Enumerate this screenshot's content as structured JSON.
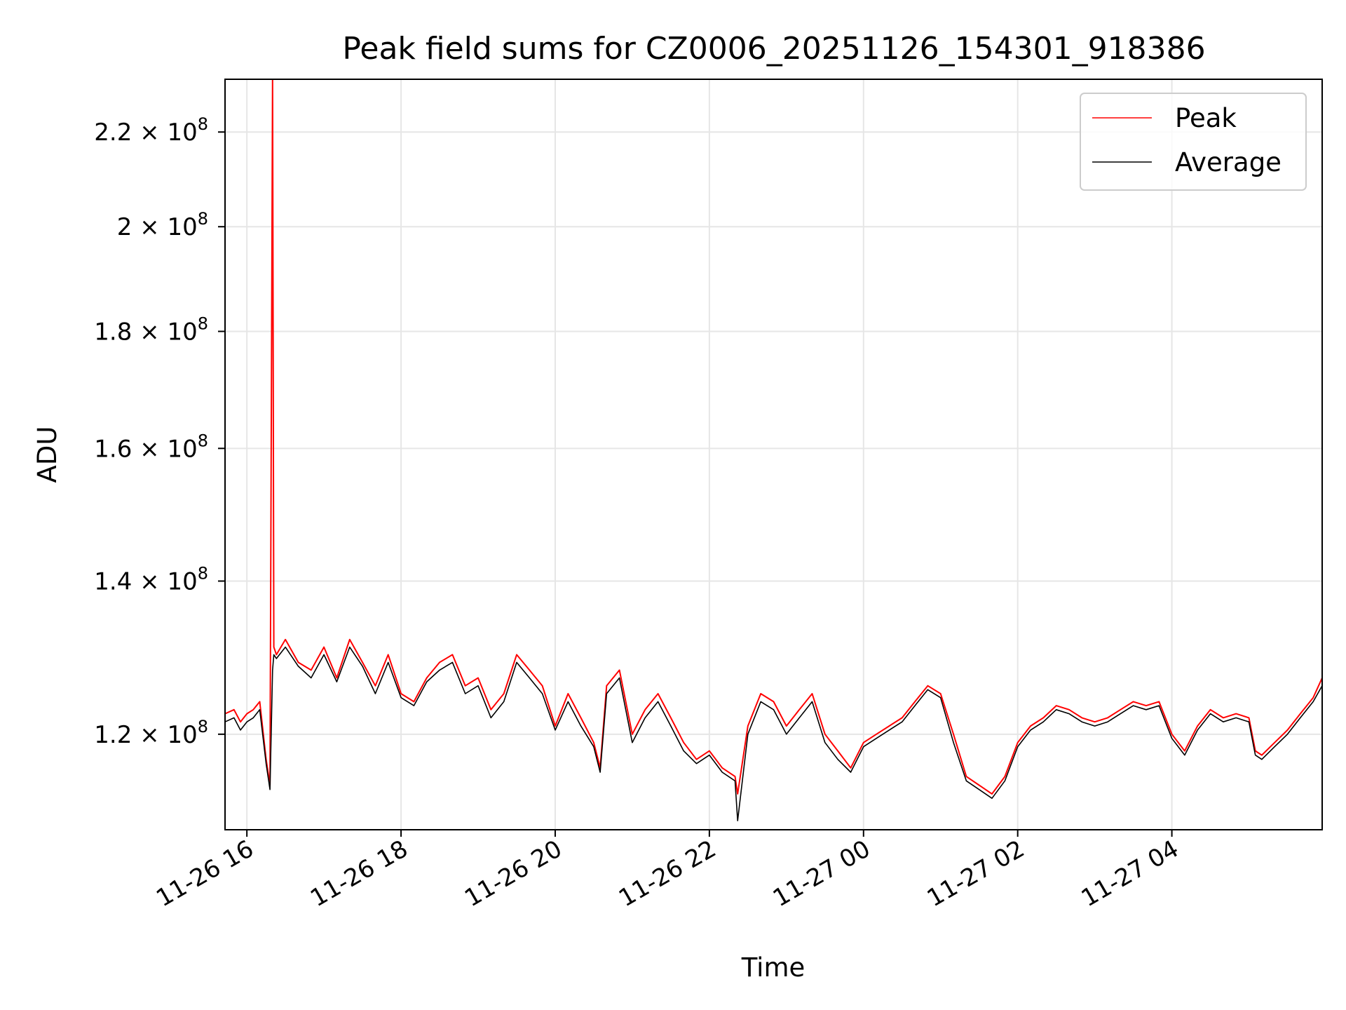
{
  "chart_data": {
    "type": "line",
    "title": "Peak field sums for CZ0006_20251126_154301_918386",
    "xlabel": "Time",
    "ylabel": "ADU",
    "y_scale": "log",
    "grid": true,
    "legend_position": "top-right",
    "xlim": [
      "2025-11-26 15:43",
      "2025-11-27 05:57"
    ],
    "ylim": [
      109000000.0,
      232000000.0
    ],
    "x_ticks": [
      {
        "t": "2025-11-26 16:00",
        "label": "11-26 16"
      },
      {
        "t": "2025-11-26 18:00",
        "label": "11-26 18"
      },
      {
        "t": "2025-11-26 20:00",
        "label": "11-26 20"
      },
      {
        "t": "2025-11-26 22:00",
        "label": "11-26 22"
      },
      {
        "t": "2025-11-27 00:00",
        "label": "11-27 00"
      },
      {
        "t": "2025-11-27 02:00",
        "label": "11-27 02"
      },
      {
        "t": "2025-11-27 04:00",
        "label": "11-27 04"
      }
    ],
    "y_ticks": [
      {
        "value": 120000000.0,
        "mantissa": "1.2",
        "exponent": "8"
      },
      {
        "value": 140000000.0,
        "mantissa": "1.4",
        "exponent": "8"
      },
      {
        "value": 160000000.0,
        "mantissa": "1.6",
        "exponent": "8"
      },
      {
        "value": 180000000.0,
        "mantissa": "1.8",
        "exponent": "8"
      },
      {
        "value": 200000000.0,
        "mantissa": "2",
        "exponent": "8"
      },
      {
        "value": 220000000.0,
        "mantissa": "2.2",
        "exponent": "8"
      }
    ],
    "colors": {
      "peak": "#ff0000",
      "average": "#000000",
      "grid": "#e6e6e6",
      "legend_border": "#cccccc"
    },
    "series": [
      {
        "name": "Peak",
        "color": "#ff0000",
        "x": [
          "2025-11-26 15:43",
          "2025-11-26 15:50",
          "2025-11-26 15:55",
          "2025-11-26 16:00",
          "2025-11-26 16:05",
          "2025-11-26 16:10",
          "2025-11-26 16:15",
          "2025-11-26 16:18",
          "2025-11-26 16:20",
          "2025-11-26 16:21",
          "2025-11-26 16:23",
          "2025-11-26 16:30",
          "2025-11-26 16:40",
          "2025-11-26 16:50",
          "2025-11-26 17:00",
          "2025-11-26 17:10",
          "2025-11-26 17:20",
          "2025-11-26 17:30",
          "2025-11-26 17:40",
          "2025-11-26 17:50",
          "2025-11-26 18:00",
          "2025-11-26 18:10",
          "2025-11-26 18:20",
          "2025-11-26 18:30",
          "2025-11-26 18:40",
          "2025-11-26 18:50",
          "2025-11-26 19:00",
          "2025-11-26 19:10",
          "2025-11-26 19:20",
          "2025-11-26 19:30",
          "2025-11-26 19:40",
          "2025-11-26 19:50",
          "2025-11-26 20:00",
          "2025-11-26 20:10",
          "2025-11-26 20:20",
          "2025-11-26 20:30",
          "2025-11-26 20:35",
          "2025-11-26 20:40",
          "2025-11-26 20:50",
          "2025-11-26 21:00",
          "2025-11-26 21:10",
          "2025-11-26 21:20",
          "2025-11-26 21:30",
          "2025-11-26 21:40",
          "2025-11-26 21:50",
          "2025-11-26 22:00",
          "2025-11-26 22:10",
          "2025-11-26 22:20",
          "2025-11-26 22:22",
          "2025-11-26 22:30",
          "2025-11-26 22:40",
          "2025-11-26 22:50",
          "2025-11-26 23:00",
          "2025-11-26 23:10",
          "2025-11-26 23:20",
          "2025-11-26 23:30",
          "2025-11-26 23:40",
          "2025-11-26 23:50",
          "2025-11-27 00:00",
          "2025-11-27 00:10",
          "2025-11-27 00:20",
          "2025-11-27 00:30",
          "2025-11-27 00:40",
          "2025-11-27 00:50",
          "2025-11-27 01:00",
          "2025-11-27 01:10",
          "2025-11-27 01:20",
          "2025-11-27 01:30",
          "2025-11-27 01:40",
          "2025-11-27 01:50",
          "2025-11-27 02:00",
          "2025-11-27 02:10",
          "2025-11-27 02:20",
          "2025-11-27 02:30",
          "2025-11-27 02:40",
          "2025-11-27 02:50",
          "2025-11-27 03:00",
          "2025-11-27 03:10",
          "2025-11-27 03:20",
          "2025-11-27 03:30",
          "2025-11-27 03:40",
          "2025-11-27 03:50",
          "2025-11-27 04:00",
          "2025-11-27 04:10",
          "2025-11-27 04:20",
          "2025-11-27 04:30",
          "2025-11-27 04:40",
          "2025-11-27 04:50",
          "2025-11-27 05:00",
          "2025-11-27 05:05",
          "2025-11-27 05:10",
          "2025-11-27 05:20",
          "2025-11-27 05:30",
          "2025-11-27 05:40",
          "2025-11-27 05:50",
          "2025-11-27 05:57"
        ],
        "y": [
          122500000.0,
          123000000.0,
          121500000.0,
          122500000.0,
          123000000.0,
          124000000.0,
          117000000.0,
          114000000.0,
          232000000.0,
          131000000.0,
          130000000.0,
          132000000.0,
          129000000.0,
          128000000.0,
          131000000.0,
          127000000.0,
          132000000.0,
          129000000.0,
          126000000.0,
          130000000.0,
          125000000.0,
          124000000.0,
          127000000.0,
          129000000.0,
          130000000.0,
          126000000.0,
          127000000.0,
          123000000.0,
          125000000.0,
          130000000.0,
          128000000.0,
          126000000.0,
          121000000.0,
          125000000.0,
          122000000.0,
          119000000.0,
          116000000.0,
          126000000.0,
          128000000.0,
          120000000.0,
          123000000.0,
          125000000.0,
          122000000.0,
          119000000.0,
          117000000.0,
          118000000.0,
          116000000.0,
          115000000.0,
          113000000.0,
          121000000.0,
          125000000.0,
          124000000.0,
          121000000.0,
          123000000.0,
          125000000.0,
          120000000.0,
          118000000.0,
          116000000.0,
          119000000.0,
          120000000.0,
          121000000.0,
          122000000.0,
          124000000.0,
          126000000.0,
          125000000.0,
          120000000.0,
          115000000.0,
          114000000.0,
          113000000.0,
          115000000.0,
          119000000.0,
          121000000.0,
          122000000.0,
          123500000.0,
          123000000.0,
          122000000.0,
          121500000.0,
          122000000.0,
          123000000.0,
          124000000.0,
          123500000.0,
          124000000.0,
          120000000.0,
          118000000.0,
          121000000.0,
          123000000.0,
          122000000.0,
          122500000.0,
          122000000.0,
          118000000.0,
          117500000.0,
          119000000.0,
          120500000.0,
          122500000.0,
          124500000.0,
          127000000.0
        ]
      },
      {
        "name": "Average",
        "color": "#000000",
        "x": [
          "2025-11-26 15:43",
          "2025-11-26 15:50",
          "2025-11-26 15:55",
          "2025-11-26 16:00",
          "2025-11-26 16:05",
          "2025-11-26 16:10",
          "2025-11-26 16:15",
          "2025-11-26 16:18",
          "2025-11-26 16:20",
          "2025-11-26 16:21",
          "2025-11-26 16:23",
          "2025-11-26 16:30",
          "2025-11-26 16:40",
          "2025-11-26 16:50",
          "2025-11-26 17:00",
          "2025-11-26 17:10",
          "2025-11-26 17:20",
          "2025-11-26 17:30",
          "2025-11-26 17:40",
          "2025-11-26 17:50",
          "2025-11-26 18:00",
          "2025-11-26 18:10",
          "2025-11-26 18:20",
          "2025-11-26 18:30",
          "2025-11-26 18:40",
          "2025-11-26 18:50",
          "2025-11-26 19:00",
          "2025-11-26 19:10",
          "2025-11-26 19:20",
          "2025-11-26 19:30",
          "2025-11-26 19:40",
          "2025-11-26 19:50",
          "2025-11-26 20:00",
          "2025-11-26 20:10",
          "2025-11-26 20:20",
          "2025-11-26 20:30",
          "2025-11-26 20:35",
          "2025-11-26 20:40",
          "2025-11-26 20:50",
          "2025-11-26 21:00",
          "2025-11-26 21:10",
          "2025-11-26 21:20",
          "2025-11-26 21:30",
          "2025-11-26 21:40",
          "2025-11-26 21:50",
          "2025-11-26 22:00",
          "2025-11-26 22:10",
          "2025-11-26 22:20",
          "2025-11-26 22:22",
          "2025-11-26 22:30",
          "2025-11-26 22:40",
          "2025-11-26 22:50",
          "2025-11-26 23:00",
          "2025-11-26 23:10",
          "2025-11-26 23:20",
          "2025-11-26 23:30",
          "2025-11-26 23:40",
          "2025-11-26 23:50",
          "2025-11-27 00:00",
          "2025-11-27 00:10",
          "2025-11-27 00:20",
          "2025-11-27 00:30",
          "2025-11-27 00:40",
          "2025-11-27 00:50",
          "2025-11-27 01:00",
          "2025-11-27 01:10",
          "2025-11-27 01:20",
          "2025-11-27 01:30",
          "2025-11-27 01:40",
          "2025-11-27 01:50",
          "2025-11-27 02:00",
          "2025-11-27 02:10",
          "2025-11-27 02:20",
          "2025-11-27 02:30",
          "2025-11-27 02:40",
          "2025-11-27 02:50",
          "2025-11-27 03:00",
          "2025-11-27 03:10",
          "2025-11-27 03:20",
          "2025-11-27 03:30",
          "2025-11-27 03:40",
          "2025-11-27 03:50",
          "2025-11-27 04:00",
          "2025-11-27 04:10",
          "2025-11-27 04:20",
          "2025-11-27 04:30",
          "2025-11-27 04:40",
          "2025-11-27 04:50",
          "2025-11-27 05:00",
          "2025-11-27 05:05",
          "2025-11-27 05:10",
          "2025-11-27 05:20",
          "2025-11-27 05:30",
          "2025-11-27 05:40",
          "2025-11-27 05:50",
          "2025-11-27 05:57"
        ],
        "y": [
          121500000.0,
          122000000.0,
          120500000.0,
          121500000.0,
          122000000.0,
          123000000.0,
          116500000.0,
          113500000.0,
          128000000.0,
          130000000.0,
          129500000.0,
          131000000.0,
          128500000.0,
          127000000.0,
          130000000.0,
          126500000.0,
          131000000.0,
          128500000.0,
          125000000.0,
          129000000.0,
          124500000.0,
          123500000.0,
          126500000.0,
          128000000.0,
          129000000.0,
          125000000.0,
          126000000.0,
          122000000.0,
          124000000.0,
          129000000.0,
          127000000.0,
          125000000.0,
          120500000.0,
          124000000.0,
          121000000.0,
          118500000.0,
          115500000.0,
          125000000.0,
          127000000.0,
          119000000.0,
          122000000.0,
          124000000.0,
          121000000.0,
          118000000.0,
          116500000.0,
          117500000.0,
          115500000.0,
          114500000.0,
          110000000.0,
          120000000.0,
          124000000.0,
          123000000.0,
          120000000.0,
          122000000.0,
          124000000.0,
          119000000.0,
          117000000.0,
          115500000.0,
          118500000.0,
          119500000.0,
          120500000.0,
          121500000.0,
          123500000.0,
          125500000.0,
          124500000.0,
          119000000.0,
          114500000.0,
          113500000.0,
          112500000.0,
          114500000.0,
          118500000.0,
          120500000.0,
          121500000.0,
          123000000.0,
          122500000.0,
          121500000.0,
          121000000.0,
          121500000.0,
          122500000.0,
          123500000.0,
          123000000.0,
          123500000.0,
          119500000.0,
          117500000.0,
          120500000.0,
          122500000.0,
          121500000.0,
          122000000.0,
          121500000.0,
          117500000.0,
          117000000.0,
          118500000.0,
          120000000.0,
          122000000.0,
          124000000.0,
          126000000.0
        ]
      }
    ]
  }
}
